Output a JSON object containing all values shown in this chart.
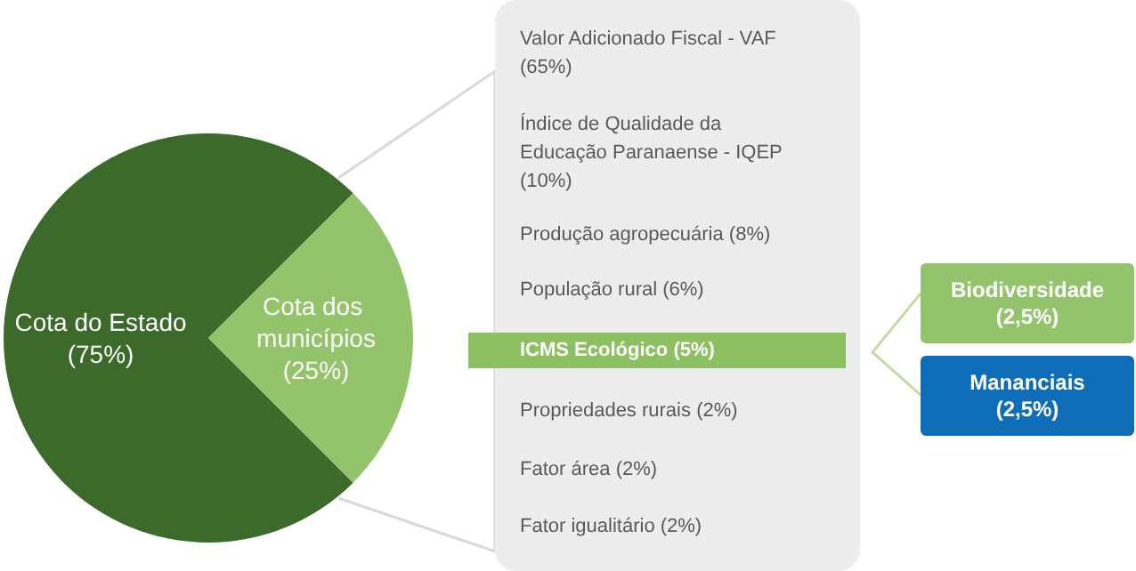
{
  "chart_data": [
    {
      "type": "pie",
      "categories": [
        "Cota do Estado",
        "Cota dos municípios"
      ],
      "values": [
        75,
        25
      ],
      "value_labels": [
        "(75%)",
        "(25%)"
      ],
      "colors": [
        "#3b6a2a",
        "#93c46b"
      ]
    },
    {
      "type": "other",
      "categories": [
        "Valor Adicionado Fiscal - VAF",
        "Índice de Qualidade da Educação Paranaense - IQEP",
        "Produção agropecuária",
        "População rural",
        "ICMS Ecológico",
        "Propriedades rurais",
        "Fator área",
        "Fator igualitário"
      ],
      "values": [
        65,
        10,
        8,
        6,
        5,
        2,
        2,
        2
      ],
      "value_labels": [
        "(65%)",
        "(10%)",
        "(8%)",
        "(6%)",
        "(5%)",
        "(2%)",
        "(2%)",
        "(2%)"
      ],
      "colors": [
        null,
        null,
        null,
        null,
        "#8dc063",
        null,
        null,
        null
      ]
    },
    {
      "type": "other",
      "categories": [
        "Biodiversidade",
        "Mananciais"
      ],
      "values": [
        2.5,
        2.5
      ],
      "value_labels": [
        "(2,5%)",
        "(2,5%)"
      ],
      "colors": [
        "#93c46b",
        "#0f6db7"
      ]
    }
  ]
}
